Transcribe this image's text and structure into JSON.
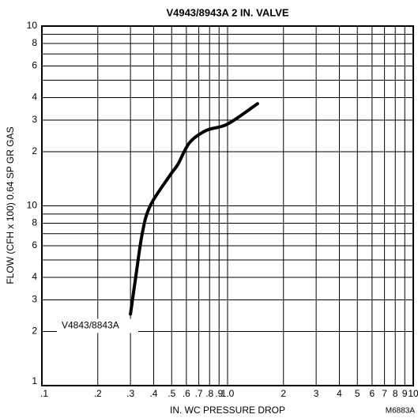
{
  "chart_data": {
    "type": "line",
    "title": "V4943/8943A 2 IN. VALVE",
    "x_label": "IN. WC PRESSURE DROP",
    "y_label": "FLOW (CFH x 100) 0.64 SP GR GAS",
    "figure_id": "M6883A",
    "xscale": "log",
    "yscale": "log",
    "grid": true,
    "xlim": [
      0.1,
      10
    ],
    "ylim": [
      1,
      100
    ],
    "xticks": [
      {
        "value": 0.1,
        "label": ".1"
      },
      {
        "value": 0.2,
        "label": ".2"
      },
      {
        "value": 0.3,
        "label": ".3"
      },
      {
        "value": 0.4,
        "label": ".4"
      },
      {
        "value": 0.5,
        "label": ".5"
      },
      {
        "value": 0.6,
        "label": ".6"
      },
      {
        "value": 0.7,
        "label": ".7"
      },
      {
        "value": 0.8,
        "label": ".8"
      },
      {
        "value": 0.9,
        "label": ".9"
      },
      {
        "value": 1,
        "label": "1.0"
      },
      2,
      3,
      4,
      5,
      6,
      7,
      8,
      9,
      10
    ],
    "yticks": [
      1,
      2,
      3,
      4,
      6,
      8,
      10,
      {
        "value": 20,
        "label": "2"
      },
      {
        "value": 30,
        "label": "3"
      },
      {
        "value": 40,
        "label": "4"
      },
      {
        "value": 60,
        "label": "6"
      },
      {
        "value": 80,
        "label": "8"
      },
      {
        "value": 100,
        "label": "10"
      }
    ],
    "minor_yticks": [
      5,
      7,
      9,
      50,
      70,
      90
    ],
    "major_xline": 1,
    "major_yline": 10,
    "series": [
      {
        "name": "V4843/8843A",
        "color": "#000000",
        "x": [
          0.3,
          0.32,
          0.347,
          0.383,
          0.49,
          0.54,
          0.625,
          0.77,
          1.0,
          1.45
        ],
        "values": [
          2.5,
          4,
          7,
          10,
          14.8,
          17,
          22.5,
          26.3,
          28.5,
          37
        ]
      }
    ]
  }
}
